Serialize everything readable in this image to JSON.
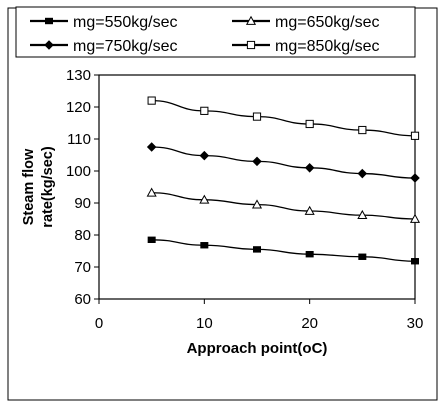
{
  "chart_data": {
    "type": "line",
    "title": "",
    "xlabel": "Approach point(oC)",
    "ylabel_lines": [
      "Steam flow",
      "rate(kg/sec)"
    ],
    "xlim": [
      0,
      30
    ],
    "ylim": [
      60,
      130
    ],
    "xticks": [
      0,
      10,
      20,
      30
    ],
    "yticks": [
      60,
      70,
      80,
      90,
      100,
      110,
      120,
      130
    ],
    "grid": false,
    "legend_position": "top",
    "x": [
      5,
      10,
      15,
      20,
      25,
      30
    ],
    "series": [
      {
        "name": "mg=550kg/sec",
        "marker": "filled-square",
        "values": [
          78.5,
          76.8,
          75.5,
          74.0,
          73.2,
          71.8
        ]
      },
      {
        "name": "mg=650kg/sec",
        "marker": "open-triangle",
        "values": [
          93.2,
          91.0,
          89.5,
          87.5,
          86.2,
          85.0
        ]
      },
      {
        "name": "mg=750kg/sec",
        "marker": "filled-diamond",
        "values": [
          107.5,
          104.8,
          103.0,
          101.0,
          99.2,
          97.8
        ]
      },
      {
        "name": "mg=850kg/sec",
        "marker": "open-square",
        "values": [
          122.0,
          118.8,
          117.0,
          114.7,
          112.8,
          111.0
        ]
      }
    ],
    "line_color": "#000000"
  }
}
